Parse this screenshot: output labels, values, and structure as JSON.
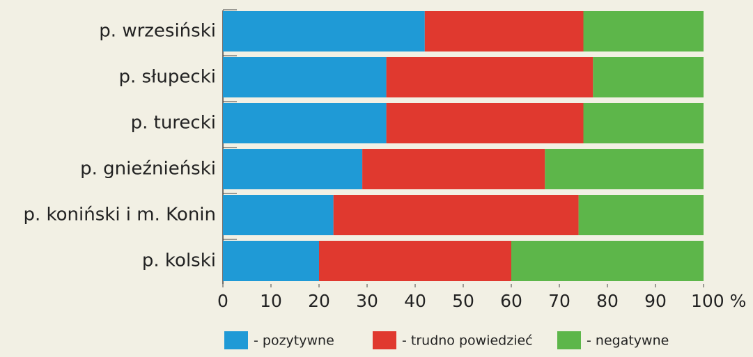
{
  "chart_data": {
    "type": "stacked-barh",
    "categories": [
      "p. wrzesiński",
      "p. słupecki",
      "p. turecki",
      "p. gnieźnieński",
      "p. koniński i m. Konin",
      "p. kolski"
    ],
    "series": [
      {
        "name": "- pozytywne",
        "color": "#1f9ad6",
        "values": [
          42,
          34,
          34,
          29,
          23,
          20
        ]
      },
      {
        "name": "- trudno powiedzieć",
        "color": "#e0392f",
        "values": [
          33,
          43,
          41,
          38,
          51,
          40
        ]
      },
      {
        "name": "- negatywne",
        "color": "#5db64a",
        "values": [
          25,
          23,
          25,
          33,
          26,
          40
        ]
      }
    ],
    "xlim": [
      0,
      100
    ],
    "xticks": [
      0,
      10,
      20,
      30,
      40,
      50,
      60,
      70,
      80,
      90,
      {
        "value": 100,
        "label": "100 %"
      }
    ]
  }
}
